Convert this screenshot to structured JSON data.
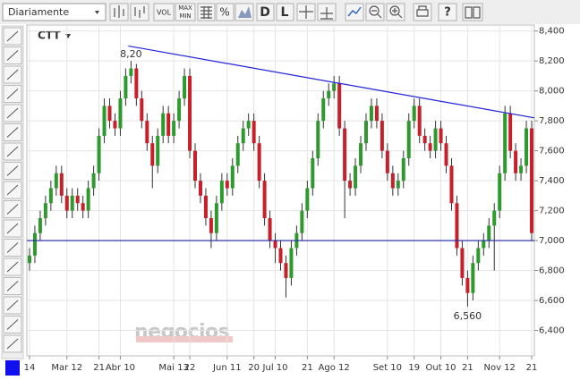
{
  "toolbar": {
    "period": "Diariamente",
    "buttons": [
      "VOL",
      "MAX",
      "MIN",
      "%",
      "D",
      "L"
    ]
  },
  "watermark": "negocios",
  "chart_data": {
    "type": "candlestick",
    "symbol": "CTT",
    "up_color": "#2e9a2e",
    "down_color": "#c8202a",
    "open": [
      6.85,
      6.9,
      7.05,
      7.15,
      7.25,
      7.35,
      7.45,
      7.3,
      7.2,
      7.3,
      7.25,
      7.2,
      7.35,
      7.45,
      7.7,
      7.9,
      7.8,
      7.75,
      7.95,
      8.1,
      8.15,
      7.95,
      7.8,
      7.65,
      7.5,
      7.7,
      7.85,
      7.7,
      7.8,
      7.95,
      8.1,
      7.6,
      7.4,
      7.3,
      7.15,
      7.05,
      7.25,
      7.4,
      7.35,
      7.5,
      7.65,
      7.75,
      7.8,
      7.65,
      7.4,
      7.15,
      7.0,
      6.95,
      6.85,
      6.75,
      6.95,
      7.05,
      7.2,
      7.35,
      7.55,
      7.8,
      7.95,
      8.0,
      8.05,
      7.75,
      7.4,
      7.35,
      7.5,
      7.65,
      7.8,
      7.9,
      7.8,
      7.6,
      7.45,
      7.35,
      7.4,
      7.55,
      7.8,
      7.9,
      7.7,
      7.65,
      7.6,
      7.75,
      7.65,
      7.5,
      7.25,
      6.95,
      6.75,
      6.65,
      6.85,
      6.95,
      7.0,
      7.1,
      7.2,
      7.45,
      7.85,
      7.6,
      7.45,
      7.5,
      7.75
    ],
    "high": [
      6.95,
      7.1,
      7.2,
      7.3,
      7.4,
      7.5,
      7.5,
      7.35,
      7.35,
      7.35,
      7.3,
      7.4,
      7.5,
      7.75,
      7.95,
      7.95,
      7.85,
      8.0,
      8.15,
      8.2,
      8.18,
      8.0,
      7.85,
      7.7,
      7.75,
      7.9,
      7.9,
      7.85,
      8.0,
      8.15,
      8.15,
      7.65,
      7.45,
      7.35,
      7.2,
      7.3,
      7.45,
      7.45,
      7.55,
      7.7,
      7.8,
      7.85,
      7.85,
      7.7,
      7.45,
      7.2,
      7.05,
      7.0,
      6.9,
      7.0,
      7.1,
      7.25,
      7.4,
      7.6,
      7.85,
      8.0,
      8.05,
      8.1,
      8.1,
      7.8,
      7.45,
      7.55,
      7.7,
      7.85,
      7.95,
      7.95,
      7.85,
      7.65,
      7.5,
      7.45,
      7.6,
      7.85,
      7.95,
      7.95,
      7.75,
      7.7,
      7.8,
      7.8,
      7.7,
      7.55,
      7.3,
      7.0,
      6.8,
      6.9,
      7.0,
      7.05,
      7.15,
      7.25,
      7.5,
      7.9,
      7.9,
      7.65,
      7.55,
      7.8,
      7.8
    ],
    "low": [
      6.8,
      6.85,
      7.0,
      7.1,
      7.2,
      7.3,
      7.25,
      7.15,
      7.15,
      7.2,
      7.15,
      7.15,
      7.3,
      7.4,
      7.65,
      7.75,
      7.7,
      7.7,
      7.9,
      8.05,
      7.9,
      7.75,
      7.6,
      7.35,
      7.45,
      7.65,
      7.65,
      7.65,
      7.75,
      7.9,
      7.55,
      7.35,
      7.25,
      7.1,
      6.95,
      7.0,
      7.2,
      7.3,
      7.3,
      7.45,
      7.6,
      7.7,
      7.6,
      7.35,
      7.1,
      6.95,
      6.85,
      6.8,
      6.62,
      6.7,
      6.9,
      7.0,
      7.15,
      7.3,
      7.5,
      7.75,
      7.9,
      7.95,
      7.7,
      7.15,
      7.3,
      7.3,
      7.45,
      7.6,
      7.75,
      7.75,
      7.55,
      7.4,
      7.3,
      7.3,
      7.35,
      7.5,
      7.75,
      7.65,
      7.6,
      7.55,
      7.55,
      7.6,
      7.45,
      7.2,
      6.9,
      6.7,
      6.56,
      6.6,
      6.8,
      6.9,
      6.95,
      6.8,
      7.15,
      7.4,
      7.55,
      7.4,
      7.4,
      7.45,
      7.0
    ],
    "close": [
      6.9,
      7.05,
      7.15,
      7.25,
      7.35,
      7.45,
      7.3,
      7.2,
      7.3,
      7.25,
      7.2,
      7.35,
      7.45,
      7.7,
      7.9,
      7.8,
      7.75,
      7.95,
      8.1,
      8.15,
      7.95,
      7.8,
      7.65,
      7.5,
      7.7,
      7.85,
      7.7,
      7.8,
      7.95,
      8.1,
      7.6,
      7.4,
      7.3,
      7.15,
      7.05,
      7.25,
      7.4,
      7.35,
      7.5,
      7.65,
      7.75,
      7.8,
      7.65,
      7.4,
      7.15,
      7.0,
      6.95,
      6.85,
      6.75,
      6.95,
      7.05,
      7.2,
      7.35,
      7.55,
      7.8,
      7.95,
      8.0,
      8.05,
      7.75,
      7.4,
      7.35,
      7.5,
      7.65,
      7.8,
      7.9,
      7.8,
      7.6,
      7.45,
      7.35,
      7.4,
      7.55,
      7.8,
      7.9,
      7.7,
      7.65,
      7.6,
      7.75,
      7.65,
      7.5,
      7.25,
      6.95,
      6.75,
      6.65,
      6.85,
      6.95,
      7.0,
      7.1,
      7.2,
      7.45,
      7.85,
      7.6,
      7.45,
      7.5,
      7.75,
      7.05
    ],
    "xlim": [
      0,
      95
    ],
    "xticks": [
      {
        "value": 0,
        "label": "14"
      },
      {
        "value": 7,
        "label": "Mar 12"
      },
      {
        "value": 13,
        "label": "21"
      },
      {
        "value": 17,
        "label": "Abr 10"
      },
      {
        "value": 27,
        "label": "Mai 13"
      },
      {
        "value": 30,
        "label": "22"
      },
      {
        "value": 37,
        "label": "Jun 11"
      },
      {
        "value": 42,
        "label": "20"
      },
      {
        "value": 46,
        "label": "Jul 10"
      },
      {
        "value": 52,
        "label": "21"
      },
      {
        "value": 57,
        "label": "Ago 12"
      },
      {
        "value": 67,
        "label": "Set 10"
      },
      {
        "value": 72,
        "label": "19"
      },
      {
        "value": 77,
        "label": "Out 10"
      },
      {
        "value": 82,
        "label": "21"
      },
      {
        "value": 88,
        "label": "Nov 12"
      },
      {
        "value": 94,
        "label": "21"
      }
    ],
    "ylim": [
      6.23,
      8.44
    ],
    "yticks": [
      {
        "value": 6.4,
        "label": "6,400"
      },
      {
        "value": 6.6,
        "label": "6,600"
      },
      {
        "value": 6.8,
        "label": "6,800"
      },
      {
        "value": 7.0,
        "label": "7,000"
      },
      {
        "value": 7.2,
        "label": "7,200"
      },
      {
        "value": 7.4,
        "label": "7,400"
      },
      {
        "value": 7.6,
        "label": "7,600"
      },
      {
        "value": 7.8,
        "label": "7,800"
      },
      {
        "value": 8.0,
        "label": "8,000"
      },
      {
        "value": 8.2,
        "label": "8,200"
      },
      {
        "value": 8.4,
        "label": "8,400"
      }
    ],
    "grid": true,
    "annotations": [
      {
        "index": 19,
        "value": 8.2,
        "label": "8,20"
      },
      {
        "index": 82,
        "value": 6.56,
        "label": "6,560"
      }
    ],
    "lines": [
      {
        "x": [
          19,
          95
        ],
        "y": [
          8.3,
          7.82
        ],
        "color": "#2222dd"
      },
      {
        "x": [
          0,
          95
        ],
        "y": [
          7.0,
          7.0
        ],
        "color": "#2222aa"
      }
    ]
  }
}
